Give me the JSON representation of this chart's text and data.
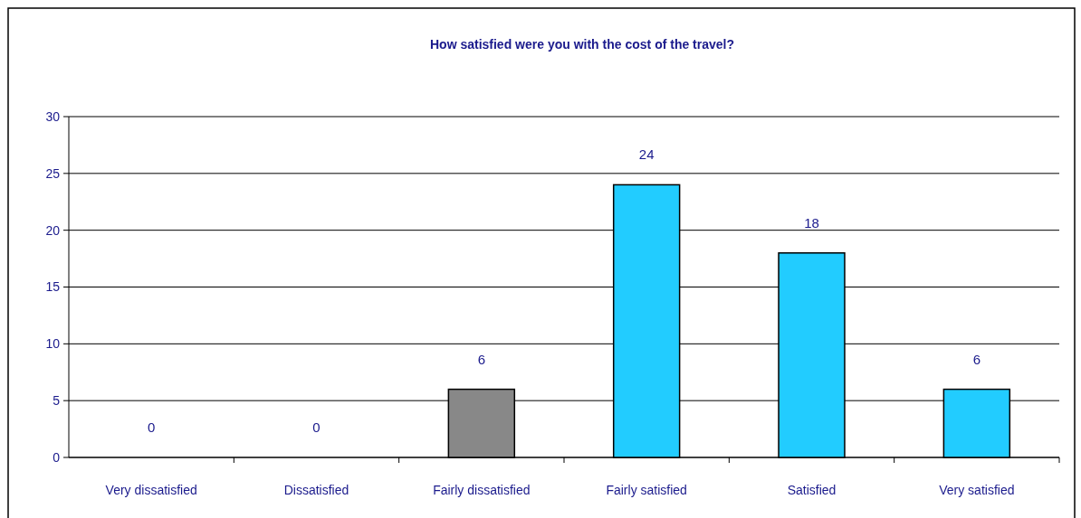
{
  "chart_data": {
    "type": "bar",
    "title": "How satisfied were you with the cost of the travel?",
    "categories": [
      "Very dissatisfied",
      "Dissatisfied",
      "Fairly dissatisfied",
      "Fairly satisfied",
      "Satisfied",
      "Very satisfied"
    ],
    "values": [
      0,
      0,
      6,
      24,
      18,
      6
    ],
    "colors": [
      "#22ccff",
      "#22ccff",
      "#888888",
      "#22ccff",
      "#22ccff",
      "#22ccff"
    ],
    "ylim": [
      0,
      30
    ],
    "yticks": [
      0,
      5,
      10,
      15,
      20,
      25,
      30
    ],
    "grid": "y",
    "data_labels": true
  }
}
